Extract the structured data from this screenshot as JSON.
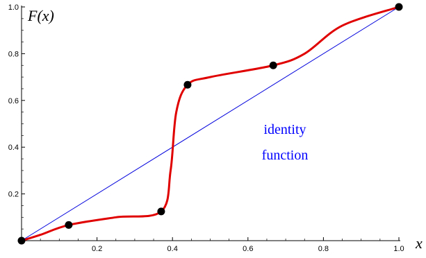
{
  "chart_data": {
    "type": "line",
    "ylabel": "F(x)",
    "xlabel": "x",
    "xlim": [
      0,
      1
    ],
    "ylim": [
      0,
      1
    ],
    "x_ticks": [
      "0.2",
      "0.4",
      "0.6",
      "0.8",
      "1.0"
    ],
    "y_ticks": [
      "0.2",
      "0.4",
      "0.6",
      "0.8",
      "1.0"
    ],
    "grid": false,
    "annotation_lines": [
      "identity",
      "function"
    ],
    "series": [
      {
        "color": "#e00000",
        "style": "solid",
        "curve": "smooth",
        "x": [
          0,
          0.05,
          0.125,
          0.25,
          0.37,
          0.395,
          0.41,
          0.44,
          0.5,
          0.667,
          0.75,
          0.85,
          1.0
        ],
        "y": [
          0,
          0.025,
          0.067,
          0.1,
          0.125,
          0.3,
          0.55,
          0.667,
          0.7,
          0.75,
          0.8,
          0.92,
          1.0
        ]
      },
      {
        "color": "#0000dd",
        "style": "thin",
        "x": [
          0,
          1
        ],
        "y": [
          0,
          1
        ]
      }
    ],
    "points": {
      "color": "#000000",
      "x": [
        0,
        0.125,
        0.37,
        0.44,
        0.667,
        1.0
      ],
      "y": [
        0,
        0.067,
        0.125,
        0.667,
        0.75,
        1.0
      ]
    },
    "annotation_color": "#0000ff"
  }
}
